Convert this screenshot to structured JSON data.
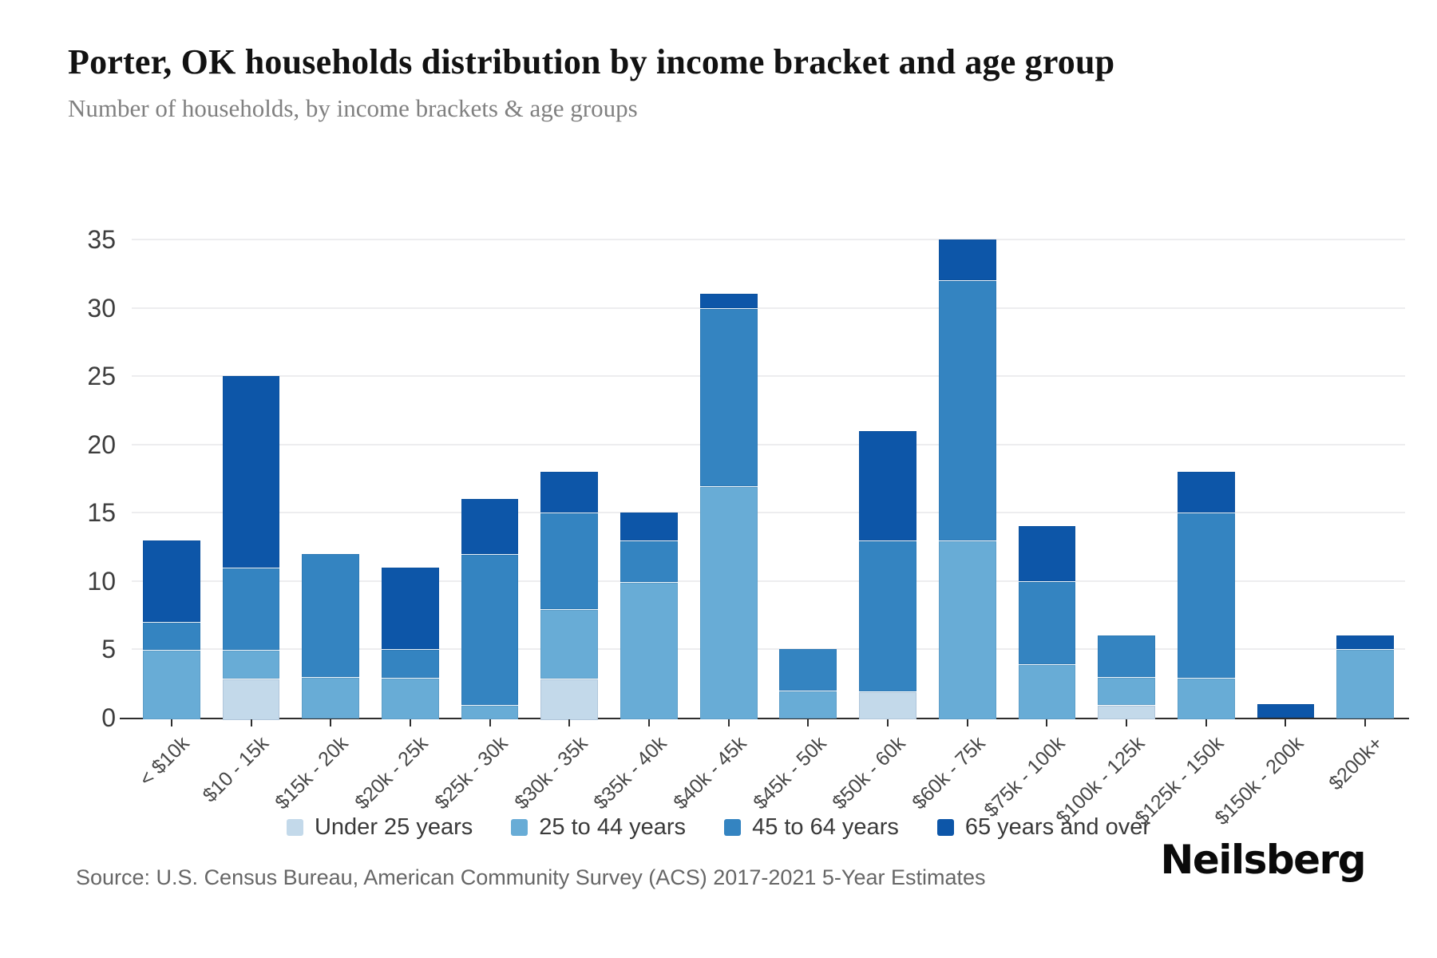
{
  "header": {
    "title": "Porter, OK households distribution by income bracket and age group",
    "subtitle": "Number of households, by income brackets & age groups"
  },
  "chart_data": {
    "type": "bar",
    "stacked": true,
    "title": "Porter, OK households distribution by income bracket and age group",
    "xlabel": "",
    "ylabel": "Number of households",
    "ylim": [
      0,
      35
    ],
    "y_ticks": [
      0,
      5,
      10,
      15,
      20,
      25,
      30,
      35
    ],
    "grid": true,
    "legend_position": "bottom",
    "categories": [
      "< $10k",
      "$10 - 15k",
      "$15k - 20k",
      "$20k - 25k",
      "$25k - 30k",
      "$30k - 35k",
      "$35k - 40k",
      "$40k - 45k",
      "$45k - 50k",
      "$50k - 60k",
      "$60k - 75k",
      "$75k - 100k",
      "$100k - 125k",
      "$125k - 150k",
      "$150k - 200k",
      "$200k+"
    ],
    "series": [
      {
        "name": "Under 25 years",
        "color": "#c3d9ea",
        "values": [
          0,
          3,
          0,
          0,
          0,
          3,
          0,
          0,
          0,
          2,
          0,
          0,
          1,
          0,
          0,
          0
        ]
      },
      {
        "name": "25 to 44 years",
        "color": "#68acd6",
        "values": [
          5,
          2,
          3,
          3,
          1,
          5,
          10,
          17,
          2,
          0,
          13,
          4,
          2,
          3,
          0,
          5
        ]
      },
      {
        "name": "45 to 64 years",
        "color": "#3484c1",
        "values": [
          2,
          6,
          9,
          2,
          11,
          7,
          3,
          13,
          3,
          11,
          19,
          6,
          3,
          12,
          0,
          0
        ]
      },
      {
        "name": "65 years and over",
        "color": "#0d56a8",
        "values": [
          6,
          14,
          0,
          6,
          4,
          3,
          2,
          1,
          0,
          8,
          3,
          4,
          0,
          3,
          1,
          1
        ]
      }
    ],
    "totals": [
      13,
      25,
      12,
      11,
      16,
      18,
      15,
      31,
      5,
      21,
      35,
      14,
      6,
      18,
      1,
      6
    ]
  },
  "footer": {
    "source": "Source: U.S. Census Bureau, American Community Survey (ACS) 2017-2021 5-Year Estimates",
    "logo": "Neilsberg"
  },
  "colors": {
    "axis": "#2e2e2e",
    "gridline": "#ededef",
    "title_text": "#121212",
    "subtitle_text": "#808080",
    "tick_text": "#3d3d3d"
  }
}
